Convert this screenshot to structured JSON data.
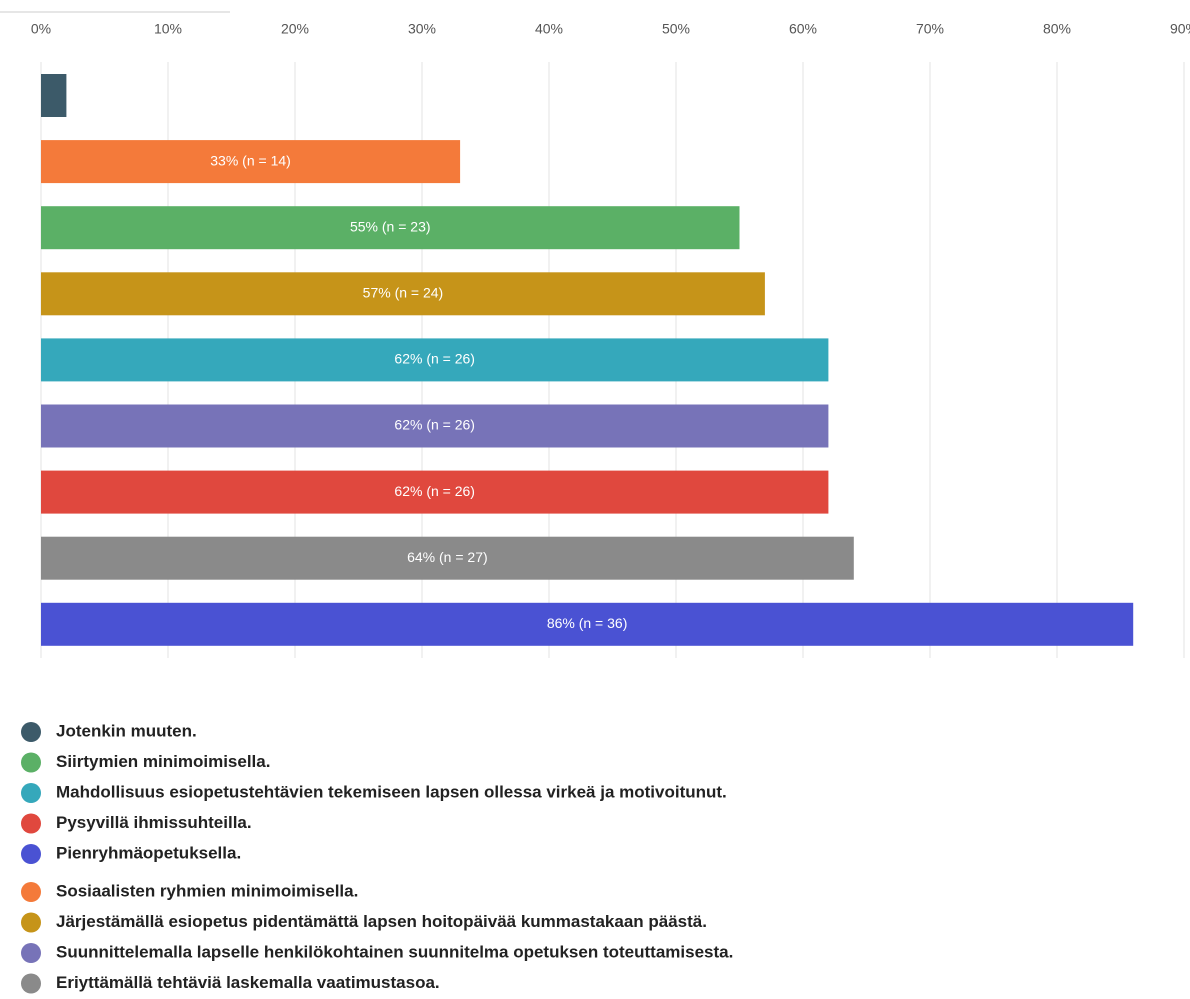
{
  "chart_data": {
    "type": "bar",
    "orientation": "horizontal",
    "categories": [
      "Jotenkin muuten.",
      "Sosiaalisten ryhmien minimoimisella.",
      "Siirtymien minimoimisella.",
      "Järjestämällä esiopetus pidentämättä lapsen hoitopäivää kummastakaan päästä.",
      "Mahdollisuus esiopetustehtävien tekemiseen lapsen ollessa virkeä ja motivoitunut.",
      "Suunnittelemalla lapselle henkilökohtainen suunnitelma opetuksen toteuttamisesta.",
      "Pysyvillä ihmissuhteilla.",
      "Eriyttämällä tehtäviä laskemalla vaatimustasoa.",
      "Pienryhmäopetuksella."
    ],
    "values": [
      2,
      33,
      55,
      57,
      62,
      62,
      62,
      64,
      86
    ],
    "value_labels": [
      null,
      "33% (n = 14)",
      "55% (n = 23)",
      "57% (n = 24)",
      "62% (n = 26)",
      "62% (n = 26)",
      "62% (n = 26)",
      "64% (n = 27)",
      "86% (n = 36)"
    ],
    "colors": [
      "#3c5a69",
      "#f47a3a",
      "#5bb066",
      "#c69419",
      "#35a8bb",
      "#7773b8",
      "#e0483e",
      "#8a8a8a",
      "#4a52d3"
    ],
    "xlim": [
      0,
      90
    ],
    "xticks": [
      {
        "value": 0,
        "label": "0%"
      },
      {
        "value": 10,
        "label": "10%"
      },
      {
        "value": 20,
        "label": "20%"
      },
      {
        "value": 30,
        "label": "30%"
      },
      {
        "value": 40,
        "label": "40%"
      },
      {
        "value": 50,
        "label": "50%"
      },
      {
        "value": 60,
        "label": "60%"
      },
      {
        "value": 70,
        "label": "70%"
      },
      {
        "value": 80,
        "label": "80%"
      },
      {
        "value": 90,
        "label": "90%"
      }
    ],
    "grid": true,
    "legend": "bottom"
  }
}
